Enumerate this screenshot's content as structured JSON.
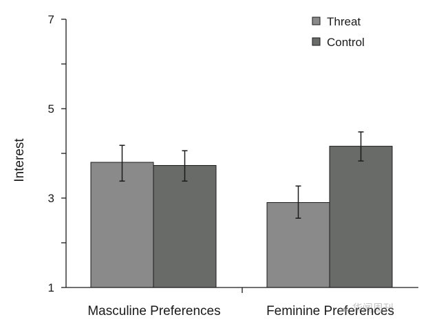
{
  "chart_data": {
    "type": "bar",
    "title": "",
    "xlabel": "",
    "ylabel": "Interest",
    "ylim": [
      1,
      7
    ],
    "yticks": [
      1,
      3,
      5,
      7
    ],
    "categories": [
      "Masculine Preferences",
      "Feminine Preferences"
    ],
    "series": [
      {
        "name": "Threat",
        "color": "#8a8a8a",
        "values": [
          3.8,
          2.9
        ],
        "error_low": [
          3.38,
          2.55
        ],
        "error_high": [
          4.18,
          3.27
        ]
      },
      {
        "name": "Control",
        "color": "#686b68",
        "values": [
          3.73,
          4.16
        ],
        "error_low": [
          3.38,
          3.83
        ],
        "error_high": [
          4.06,
          4.48
        ]
      }
    ],
    "legend_position": "top-right",
    "grid": false
  },
  "watermark": {
    "text": "华闻周刊",
    "icon": "wechat-icon"
  }
}
